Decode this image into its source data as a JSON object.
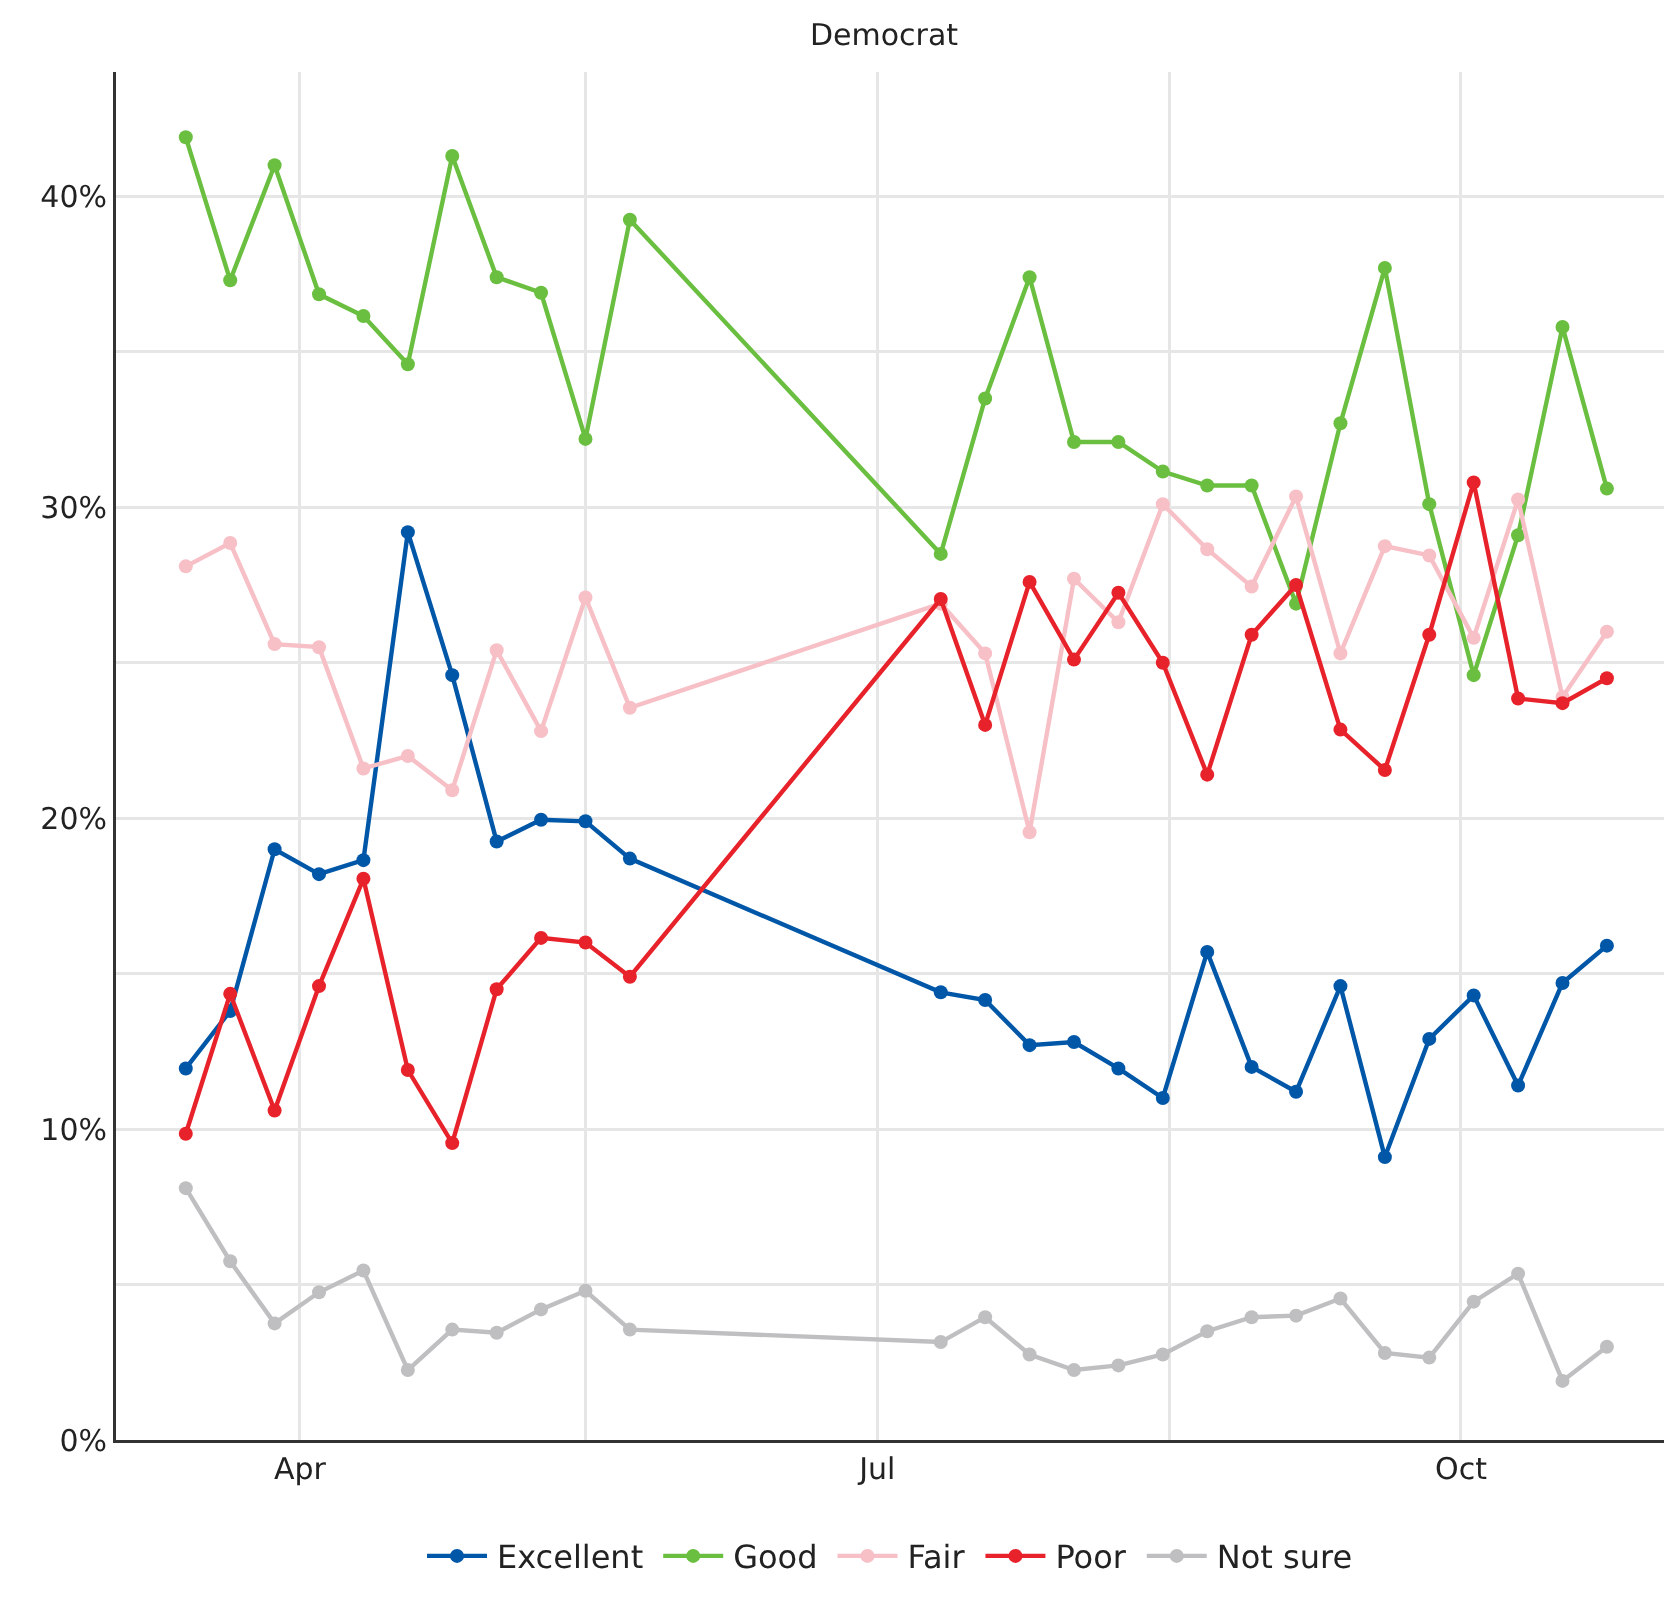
{
  "chart_data": {
    "type": "line",
    "title": "Democrat",
    "x": [
      "--03-14",
      "--03-21",
      "--03-28",
      "--04-04",
      "--04-11",
      "--04-18",
      "--04-25",
      "--05-02",
      "--05-09",
      "--05-16",
      "--05-23",
      "--07-11",
      "--07-18",
      "--07-25",
      "--08-01",
      "--08-08",
      "--08-15",
      "--08-22",
      "--08-29",
      "--09-05",
      "--09-12",
      "--09-19",
      "--09-26",
      "--10-03",
      "--10-10",
      "--10-17",
      "--10-24"
    ],
    "series": [
      {
        "name": "Excellent",
        "color": "#0057a8",
        "values": [
          11.95,
          13.8,
          19.0,
          18.2,
          18.65,
          29.2,
          24.6,
          19.25,
          19.95,
          19.9,
          18.7,
          14.4,
          14.15,
          12.7,
          12.8,
          11.95,
          11.0,
          15.7,
          12.0,
          11.2,
          14.6,
          9.1,
          12.9,
          14.3,
          11.4,
          14.7,
          15.9
        ]
      },
      {
        "name": "Good",
        "color": "#6abf40",
        "values": [
          41.9,
          37.3,
          41.0,
          36.85,
          36.15,
          34.6,
          41.3,
          37.4,
          36.9,
          32.2,
          39.25,
          28.5,
          33.5,
          37.4,
          32.1,
          32.1,
          31.15,
          30.7,
          30.7,
          26.9,
          32.7,
          37.7,
          30.1,
          24.6,
          29.1,
          35.8,
          30.6
        ]
      },
      {
        "name": "Fair",
        "color": "#f7bfc6",
        "values": [
          28.1,
          28.85,
          25.6,
          25.5,
          21.6,
          22.0,
          20.9,
          25.4,
          22.8,
          27.1,
          23.55,
          26.9,
          25.3,
          19.55,
          27.7,
          26.3,
          30.1,
          28.65,
          27.45,
          30.35,
          25.3,
          28.75,
          28.45,
          25.8,
          30.25,
          23.9,
          26.0
        ]
      },
      {
        "name": "Poor",
        "color": "#e8222a",
        "values": [
          9.85,
          14.35,
          10.6,
          14.6,
          18.05,
          11.9,
          9.55,
          14.5,
          16.15,
          16.0,
          14.9,
          27.05,
          23.0,
          27.6,
          25.1,
          27.25,
          25.0,
          21.4,
          25.9,
          27.5,
          22.85,
          21.55,
          25.9,
          30.8,
          23.85,
          23.7,
          24.5
        ]
      },
      {
        "name": "Not sure",
        "color": "#bfbfc1",
        "values": [
          8.1,
          5.75,
          3.75,
          4.75,
          5.45,
          2.25,
          3.55,
          3.45,
          4.2,
          4.8,
          3.55,
          3.15,
          3.95,
          2.75,
          2.25,
          2.4,
          2.75,
          3.5,
          3.95,
          4.0,
          4.55,
          2.8,
          2.65,
          4.45,
          5.35,
          1.9,
          3.0
        ]
      }
    ],
    "xlim": [
      "--03-03",
      "--11-02"
    ],
    "xticks": [
      {
        "value": "--04-01",
        "label": "Apr"
      },
      {
        "value": "--05-16",
        "label": null
      },
      {
        "value": "--07-01",
        "label": "Jul"
      },
      {
        "value": "--08-16",
        "label": null
      },
      {
        "value": "--10-01",
        "label": "Oct"
      }
    ],
    "ylim": [
      0,
      44
    ],
    "yticks": [
      {
        "value": 0,
        "label": "0%"
      },
      {
        "value": 5,
        "label": null
      },
      {
        "value": 10,
        "label": "10%"
      },
      {
        "value": 15,
        "label": null
      },
      {
        "value": 20,
        "label": "20%"
      },
      {
        "value": 25,
        "label": null
      },
      {
        "value": 30,
        "label": "30%"
      },
      {
        "value": 35,
        "label": null
      },
      {
        "value": 40,
        "label": "40%"
      }
    ],
    "grid": true,
    "legend": "bottom",
    "marker": "circle",
    "line_style": "solid"
  }
}
